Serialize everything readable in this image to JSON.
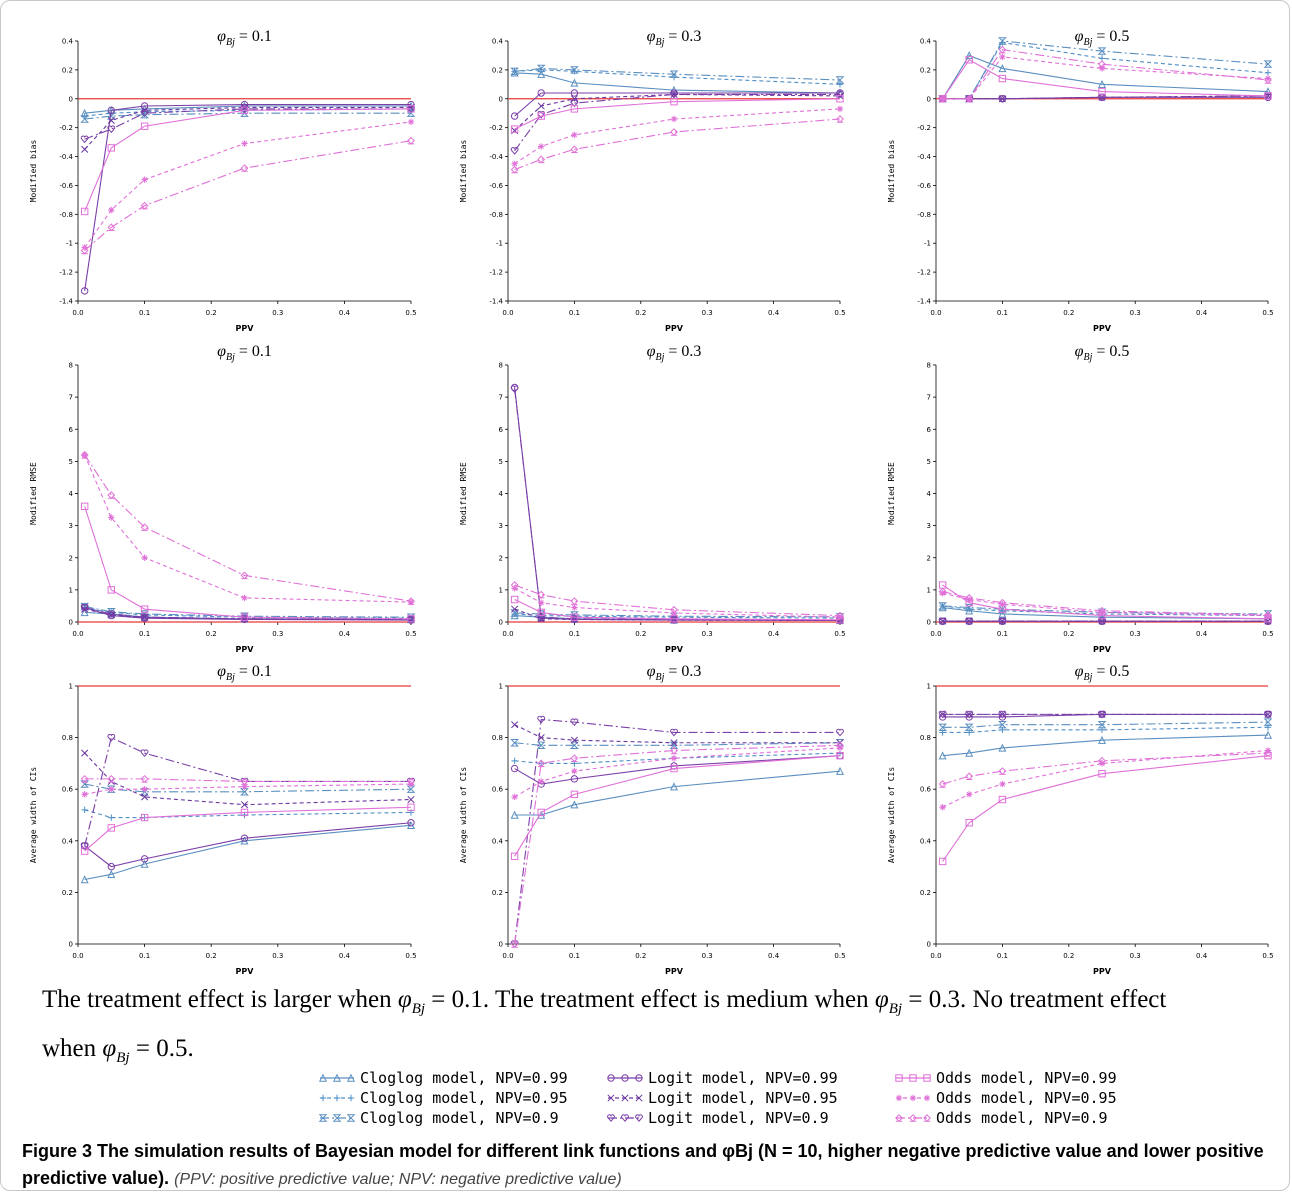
{
  "series_styles": [
    {
      "key": "cl99",
      "name": "Cloglog model, NPV=0.99",
      "color": "#5a8fbf",
      "dash": "",
      "marker": "triangle"
    },
    {
      "key": "cl95",
      "name": "Cloglog model, NPV=0.95",
      "color": "#4f8fc8",
      "dash": "4,3",
      "marker": "plus"
    },
    {
      "key": "cl9",
      "name": "Cloglog model, NPV=0.9",
      "color": "#5a8fbf",
      "dash": "9,3,2,3",
      "marker": "hourglass"
    },
    {
      "key": "lg99",
      "name": "Logit model, NPV=0.99",
      "color": "#7b3fa8",
      "dash": "",
      "marker": "circle"
    },
    {
      "key": "lg95",
      "name": "Logit model, NPV=0.95",
      "color": "#6a35a0",
      "dash": "4,3",
      "marker": "x"
    },
    {
      "key": "lg9",
      "name": "Logit model, NPV=0.9",
      "color": "#7b3fa8",
      "dash": "9,3,2,3",
      "marker": "heart"
    },
    {
      "key": "od99",
      "name": "Odds model, NPV=0.99",
      "color": "#e070d8",
      "dash": "",
      "marker": "square"
    },
    {
      "key": "od95",
      "name": "Odds model, NPV=0.95",
      "color": "#e070d8",
      "dash": "4,3",
      "marker": "star"
    },
    {
      "key": "od9",
      "name": "Odds model, NPV=0.9",
      "color": "#e070d8",
      "dash": "9,3,2,3",
      "marker": "club"
    }
  ],
  "legend": {
    "col1": [
      "Cloglog model, NPV=0.99",
      "Cloglog model, NPV=0.95",
      "Cloglog model, NPV=0.9"
    ],
    "col2": [
      "Logit model, NPV=0.99",
      "Logit model, NPV=0.95",
      "Logit model, NPV=0.9"
    ],
    "col3": [
      "Odds model, NPV=0.99",
      "Odds model, NPV=0.95",
      "Odds model, NPV=0.9"
    ]
  },
  "note": {
    "line1_a": "The treatment effect is larger when ",
    "line1_b": " = 0.1. The treatment effect is medium when ",
    "line1_c": " = 0.3. No treatment effect",
    "line2_a": "when ",
    "line2_b": " = 0.5.",
    "phi": "φ",
    "sub": "Bj"
  },
  "caption": {
    "bold": "Figure 3 The simulation results of Bayesian model for different link functions and φBj (N = 10, higher negative predictive value and lower positive predictive value).",
    "italic": "(PPV: positive predictive value; NPV: negative predictive value)"
  },
  "chart_data": [
    {
      "type": "line",
      "title": "φBj = 0.1",
      "xlabel": "PPV",
      "ylabel": "Modified bias",
      "xlim": [
        0,
        0.5
      ],
      "ylim": [
        -1.4,
        0.4
      ],
      "xticks": [
        "0.0",
        "0.1",
        "0.2",
        "0.3",
        "0.4",
        "0.5"
      ],
      "yticks": [
        "0.4",
        "0.2",
        "0",
        "-0.2",
        "-0.4",
        "-0.6",
        "-0.8",
        "-1",
        "-1.2",
        "-1.4"
      ],
      "x": [
        0.01,
        0.05,
        0.1,
        0.25,
        0.5
      ],
      "reference": [
        0
      ],
      "series": {
        "cl99": [
          -0.1,
          -0.08,
          -0.07,
          -0.05,
          -0.05
        ],
        "cl95": [
          -0.12,
          -0.1,
          -0.09,
          -0.08,
          -0.07
        ],
        "cl9": [
          -0.14,
          -0.12,
          -0.11,
          -0.1,
          -0.1
        ],
        "lg99": [
          -1.33,
          -0.08,
          -0.05,
          -0.04,
          -0.04
        ],
        "lg95": [
          -0.35,
          -0.15,
          -0.08,
          -0.06,
          -0.06
        ],
        "lg9": [
          -0.28,
          -0.21,
          -0.1,
          -0.07,
          -0.07
        ],
        "od99": [
          -0.78,
          -0.34,
          -0.19,
          -0.08,
          -0.07
        ],
        "od95": [
          -1.03,
          -0.77,
          -0.56,
          -0.31,
          -0.16
        ],
        "od9": [
          -1.05,
          -0.89,
          -0.74,
          -0.48,
          -0.29
        ]
      }
    },
    {
      "type": "line",
      "title": "φBj = 0.3",
      "xlabel": "PPV",
      "ylabel": "Modified bias",
      "xlim": [
        0,
        0.5
      ],
      "ylim": [
        -1.4,
        0.4
      ],
      "xticks": [
        "0.0",
        "0.1",
        "0.2",
        "0.3",
        "0.4",
        "0.5"
      ],
      "yticks": [
        "0.4",
        "0.2",
        "0",
        "-0.2",
        "-0.4",
        "-0.6",
        "-0.8",
        "-1",
        "-1.2",
        "-1.4"
      ],
      "x": [
        0.01,
        0.05,
        0.1,
        0.25,
        0.5
      ],
      "reference": [
        0
      ],
      "series": {
        "cl99": [
          0.18,
          0.17,
          0.11,
          0.06,
          0.04
        ],
        "cl95": [
          0.19,
          0.2,
          0.19,
          0.15,
          0.1
        ],
        "cl9": [
          0.19,
          0.21,
          0.2,
          0.17,
          0.13
        ],
        "lg99": [
          -0.12,
          0.04,
          0.04,
          0.04,
          0.04
        ],
        "lg95": [
          -0.22,
          -0.05,
          0.0,
          0.03,
          0.02
        ],
        "lg9": [
          -0.36,
          -0.11,
          -0.03,
          0.03,
          0.03
        ],
        "od99": [
          -0.21,
          -0.12,
          -0.07,
          -0.02,
          0.0
        ],
        "od95": [
          -0.45,
          -0.33,
          -0.25,
          -0.14,
          -0.07
        ],
        "od9": [
          -0.49,
          -0.42,
          -0.35,
          -0.23,
          -0.14
        ]
      }
    },
    {
      "type": "line",
      "title": "φBj = 0.5",
      "xlabel": "PPV",
      "ylabel": "Modified bias",
      "xlim": [
        0,
        0.5
      ],
      "ylim": [
        -1.4,
        0.4
      ],
      "xticks": [
        "0.0",
        "0.1",
        "0.2",
        "0.3",
        "0.4",
        "0.5"
      ],
      "yticks": [
        "0.4",
        "0.2",
        "0",
        "-0.2",
        "-0.4",
        "-0.6",
        "-0.8",
        "-1",
        "-1.2",
        "-1.4"
      ],
      "x": [
        0.01,
        0.05,
        0.1,
        0.25,
        0.5
      ],
      "reference": [
        0
      ],
      "series": {
        "cl99": [
          0.0,
          0.3,
          0.21,
          0.1,
          0.05
        ],
        "cl95": [
          0.0,
          0.0,
          0.39,
          0.28,
          0.18
        ],
        "cl9": [
          0.0,
          0.0,
          0.4,
          0.33,
          0.24
        ],
        "lg99": [
          0.0,
          0.0,
          0.0,
          0.01,
          0.01
        ],
        "lg95": [
          0.0,
          0.0,
          0.0,
          0.01,
          0.02
        ],
        "lg9": [
          0.0,
          0.0,
          0.0,
          0.01,
          0.02
        ],
        "od99": [
          0.0,
          0.27,
          0.14,
          0.05,
          0.02
        ],
        "od95": [
          0.0,
          0.0,
          0.29,
          0.21,
          0.14
        ],
        "od9": [
          0.0,
          0.0,
          0.34,
          0.24,
          0.13
        ]
      }
    },
    {
      "type": "line",
      "title": "φBj = 0.1",
      "xlabel": "PPV",
      "ylabel": "Modified RMSE",
      "xlim": [
        0,
        0.5
      ],
      "ylim": [
        0,
        8
      ],
      "xticks": [
        "0.0",
        "0.1",
        "0.2",
        "0.3",
        "0.4",
        "0.5"
      ],
      "yticks": [
        "8",
        "7",
        "6",
        "5",
        "4",
        "3",
        "2",
        "1",
        "0"
      ],
      "x": [
        0.01,
        0.05,
        0.1,
        0.25,
        0.5
      ],
      "reference": [
        0
      ],
      "series": {
        "cl99": [
          0.3,
          0.25,
          0.15,
          0.1,
          0.08
        ],
        "cl95": [
          0.45,
          0.3,
          0.22,
          0.15,
          0.12
        ],
        "cl9": [
          0.48,
          0.32,
          0.25,
          0.18,
          0.15
        ],
        "lg99": [
          0.45,
          0.2,
          0.12,
          0.08,
          0.06
        ],
        "lg95": [
          0.4,
          0.22,
          0.15,
          0.1,
          0.07
        ],
        "lg9": [
          0.45,
          0.25,
          0.15,
          0.1,
          0.08
        ],
        "od99": [
          3.6,
          1.0,
          0.4,
          0.15,
          0.1
        ],
        "od95": [
          5.2,
          3.25,
          2.0,
          0.75,
          0.62
        ],
        "od9": [
          5.2,
          3.95,
          2.95,
          1.45,
          0.65
        ]
      }
    },
    {
      "type": "line",
      "title": "φBj = 0.3",
      "xlabel": "PPV",
      "ylabel": "Modified RMSE",
      "xlim": [
        0,
        0.5
      ],
      "ylim": [
        0,
        8
      ],
      "xticks": [
        "0.0",
        "0.1",
        "0.2",
        "0.3",
        "0.4",
        "0.5"
      ],
      "yticks": [
        "8",
        "7",
        "6",
        "5",
        "4",
        "3",
        "2",
        "1",
        "0"
      ],
      "x": [
        0.01,
        0.05,
        0.1,
        0.25,
        0.5
      ],
      "reference": [
        0
      ],
      "series": {
        "cl99": [
          0.2,
          0.15,
          0.1,
          0.07,
          0.05
        ],
        "cl95": [
          0.25,
          0.2,
          0.18,
          0.15,
          0.12
        ],
        "cl9": [
          0.28,
          0.25,
          0.22,
          0.18,
          0.16
        ],
        "lg99": [
          7.3,
          0.12,
          0.08,
          0.06,
          0.05
        ],
        "lg95": [
          0.4,
          0.1,
          0.08,
          0.06,
          0.05
        ],
        "lg9": [
          7.25,
          0.15,
          0.1,
          0.08,
          0.06
        ],
        "od99": [
          0.7,
          0.3,
          0.15,
          0.1,
          0.07
        ],
        "od95": [
          1.05,
          0.6,
          0.45,
          0.28,
          0.15
        ],
        "od9": [
          1.15,
          0.85,
          0.65,
          0.38,
          0.2
        ]
      }
    },
    {
      "type": "line",
      "title": "φBj = 0.5",
      "xlabel": "PPV",
      "ylabel": "Modified RMSE",
      "xlim": [
        0,
        0.5
      ],
      "ylim": [
        0,
        8
      ],
      "xticks": [
        "0.0",
        "0.1",
        "0.2",
        "0.3",
        "0.4",
        "0.5"
      ],
      "yticks": [
        "8",
        "7",
        "6",
        "5",
        "4",
        "3",
        "2",
        "1",
        "0"
      ],
      "x": [
        0.01,
        0.05,
        0.1,
        0.25,
        0.5
      ],
      "reference": [
        0
      ],
      "series": {
        "cl99": [
          0.45,
          0.35,
          0.25,
          0.15,
          0.1
        ],
        "cl95": [
          0.5,
          0.4,
          0.35,
          0.25,
          0.2
        ],
        "cl9": [
          0.5,
          0.45,
          0.4,
          0.3,
          0.25
        ],
        "lg99": [
          0.02,
          0.02,
          0.02,
          0.02,
          0.02
        ],
        "lg95": [
          0.03,
          0.03,
          0.03,
          0.03,
          0.03
        ],
        "lg9": [
          0.03,
          0.03,
          0.03,
          0.03,
          0.03
        ],
        "od99": [
          1.15,
          0.6,
          0.4,
          0.2,
          0.1
        ],
        "od95": [
          0.9,
          0.7,
          0.55,
          0.3,
          0.2
        ],
        "od9": [
          0.95,
          0.75,
          0.6,
          0.35,
          0.22
        ]
      }
    },
    {
      "type": "line",
      "title": "φBj = 0.1",
      "xlabel": "PPV",
      "ylabel": "Average width of CIs",
      "xlim": [
        0,
        0.5
      ],
      "ylim": [
        0,
        1
      ],
      "xticks": [
        "0.0",
        "0.1",
        "0.2",
        "0.3",
        "0.4",
        "0.5"
      ],
      "yticks": [
        "1",
        "0.8",
        "0.6",
        "0.4",
        "0.2",
        "0"
      ],
      "x": [
        0.01,
        0.05,
        0.1,
        0.25,
        0.5
      ],
      "reference": [
        1
      ],
      "series": {
        "cl99": [
          0.25,
          0.27,
          0.31,
          0.4,
          0.46
        ],
        "cl95": [
          0.52,
          0.49,
          0.49,
          0.5,
          0.51
        ],
        "cl9": [
          0.62,
          0.6,
          0.59,
          0.59,
          0.6
        ],
        "lg99": [
          0.38,
          0.3,
          0.33,
          0.41,
          0.47
        ],
        "lg95": [
          0.74,
          0.63,
          0.57,
          0.54,
          0.56
        ],
        "lg9": [
          0.38,
          0.8,
          0.74,
          0.63,
          0.63
        ],
        "od99": [
          0.36,
          0.45,
          0.49,
          0.51,
          0.53
        ],
        "od95": [
          0.58,
          0.6,
          0.6,
          0.61,
          0.62
        ],
        "od9": [
          0.64,
          0.64,
          0.64,
          0.63,
          0.63
        ]
      }
    },
    {
      "type": "line",
      "title": "φBj = 0.3",
      "xlabel": "PPV",
      "ylabel": "Average width of CIs",
      "xlim": [
        0,
        0.5
      ],
      "ylim": [
        0,
        1
      ],
      "xticks": [
        "0.0",
        "0.1",
        "0.2",
        "0.3",
        "0.4",
        "0.5"
      ],
      "yticks": [
        "1",
        "0.8",
        "0.6",
        "0.4",
        "0.2",
        "0"
      ],
      "x": [
        0.01,
        0.05,
        0.1,
        0.25,
        0.5
      ],
      "reference": [
        1
      ],
      "series": {
        "cl99": [
          0.5,
          0.5,
          0.54,
          0.61,
          0.67
        ],
        "cl95": [
          0.71,
          0.7,
          0.7,
          0.72,
          0.74
        ],
        "cl9": [
          0.78,
          0.77,
          0.77,
          0.77,
          0.78
        ],
        "lg99": [
          0.68,
          0.62,
          0.64,
          0.69,
          0.73
        ],
        "lg95": [
          0.85,
          0.8,
          0.79,
          0.78,
          0.78
        ],
        "lg9": [
          0.0,
          0.87,
          0.86,
          0.82,
          0.82
        ],
        "od99": [
          0.34,
          0.51,
          0.58,
          0.68,
          0.73
        ],
        "od95": [
          0.57,
          0.63,
          0.67,
          0.72,
          0.76
        ],
        "od9": [
          0.0,
          0.7,
          0.72,
          0.75,
          0.77
        ]
      }
    },
    {
      "type": "line",
      "title": "φBj = 0.5",
      "xlabel": "PPV",
      "ylabel": "Average width of CIs",
      "xlim": [
        0,
        0.5
      ],
      "ylim": [
        0,
        1
      ],
      "xticks": [
        "0.0",
        "0.1",
        "0.2",
        "0.3",
        "0.4",
        "0.5"
      ],
      "yticks": [
        "1",
        "0.8",
        "0.6",
        "0.4",
        "0.2",
        "0"
      ],
      "x": [
        0.01,
        0.05,
        0.1,
        0.25,
        0.5
      ],
      "reference": [
        1
      ],
      "series": {
        "cl99": [
          0.73,
          0.74,
          0.76,
          0.79,
          0.81
        ],
        "cl95": [
          0.82,
          0.82,
          0.83,
          0.83,
          0.84
        ],
        "cl9": [
          0.84,
          0.84,
          0.85,
          0.85,
          0.86
        ],
        "lg99": [
          0.88,
          0.88,
          0.88,
          0.89,
          0.89
        ],
        "lg95": [
          0.89,
          0.89,
          0.89,
          0.89,
          0.89
        ],
        "lg9": [
          0.89,
          0.89,
          0.89,
          0.89,
          0.89
        ],
        "od99": [
          0.32,
          0.47,
          0.56,
          0.66,
          0.73
        ],
        "od95": [
          0.53,
          0.58,
          0.62,
          0.7,
          0.75
        ],
        "od9": [
          0.62,
          0.65,
          0.67,
          0.71,
          0.74
        ]
      }
    }
  ]
}
